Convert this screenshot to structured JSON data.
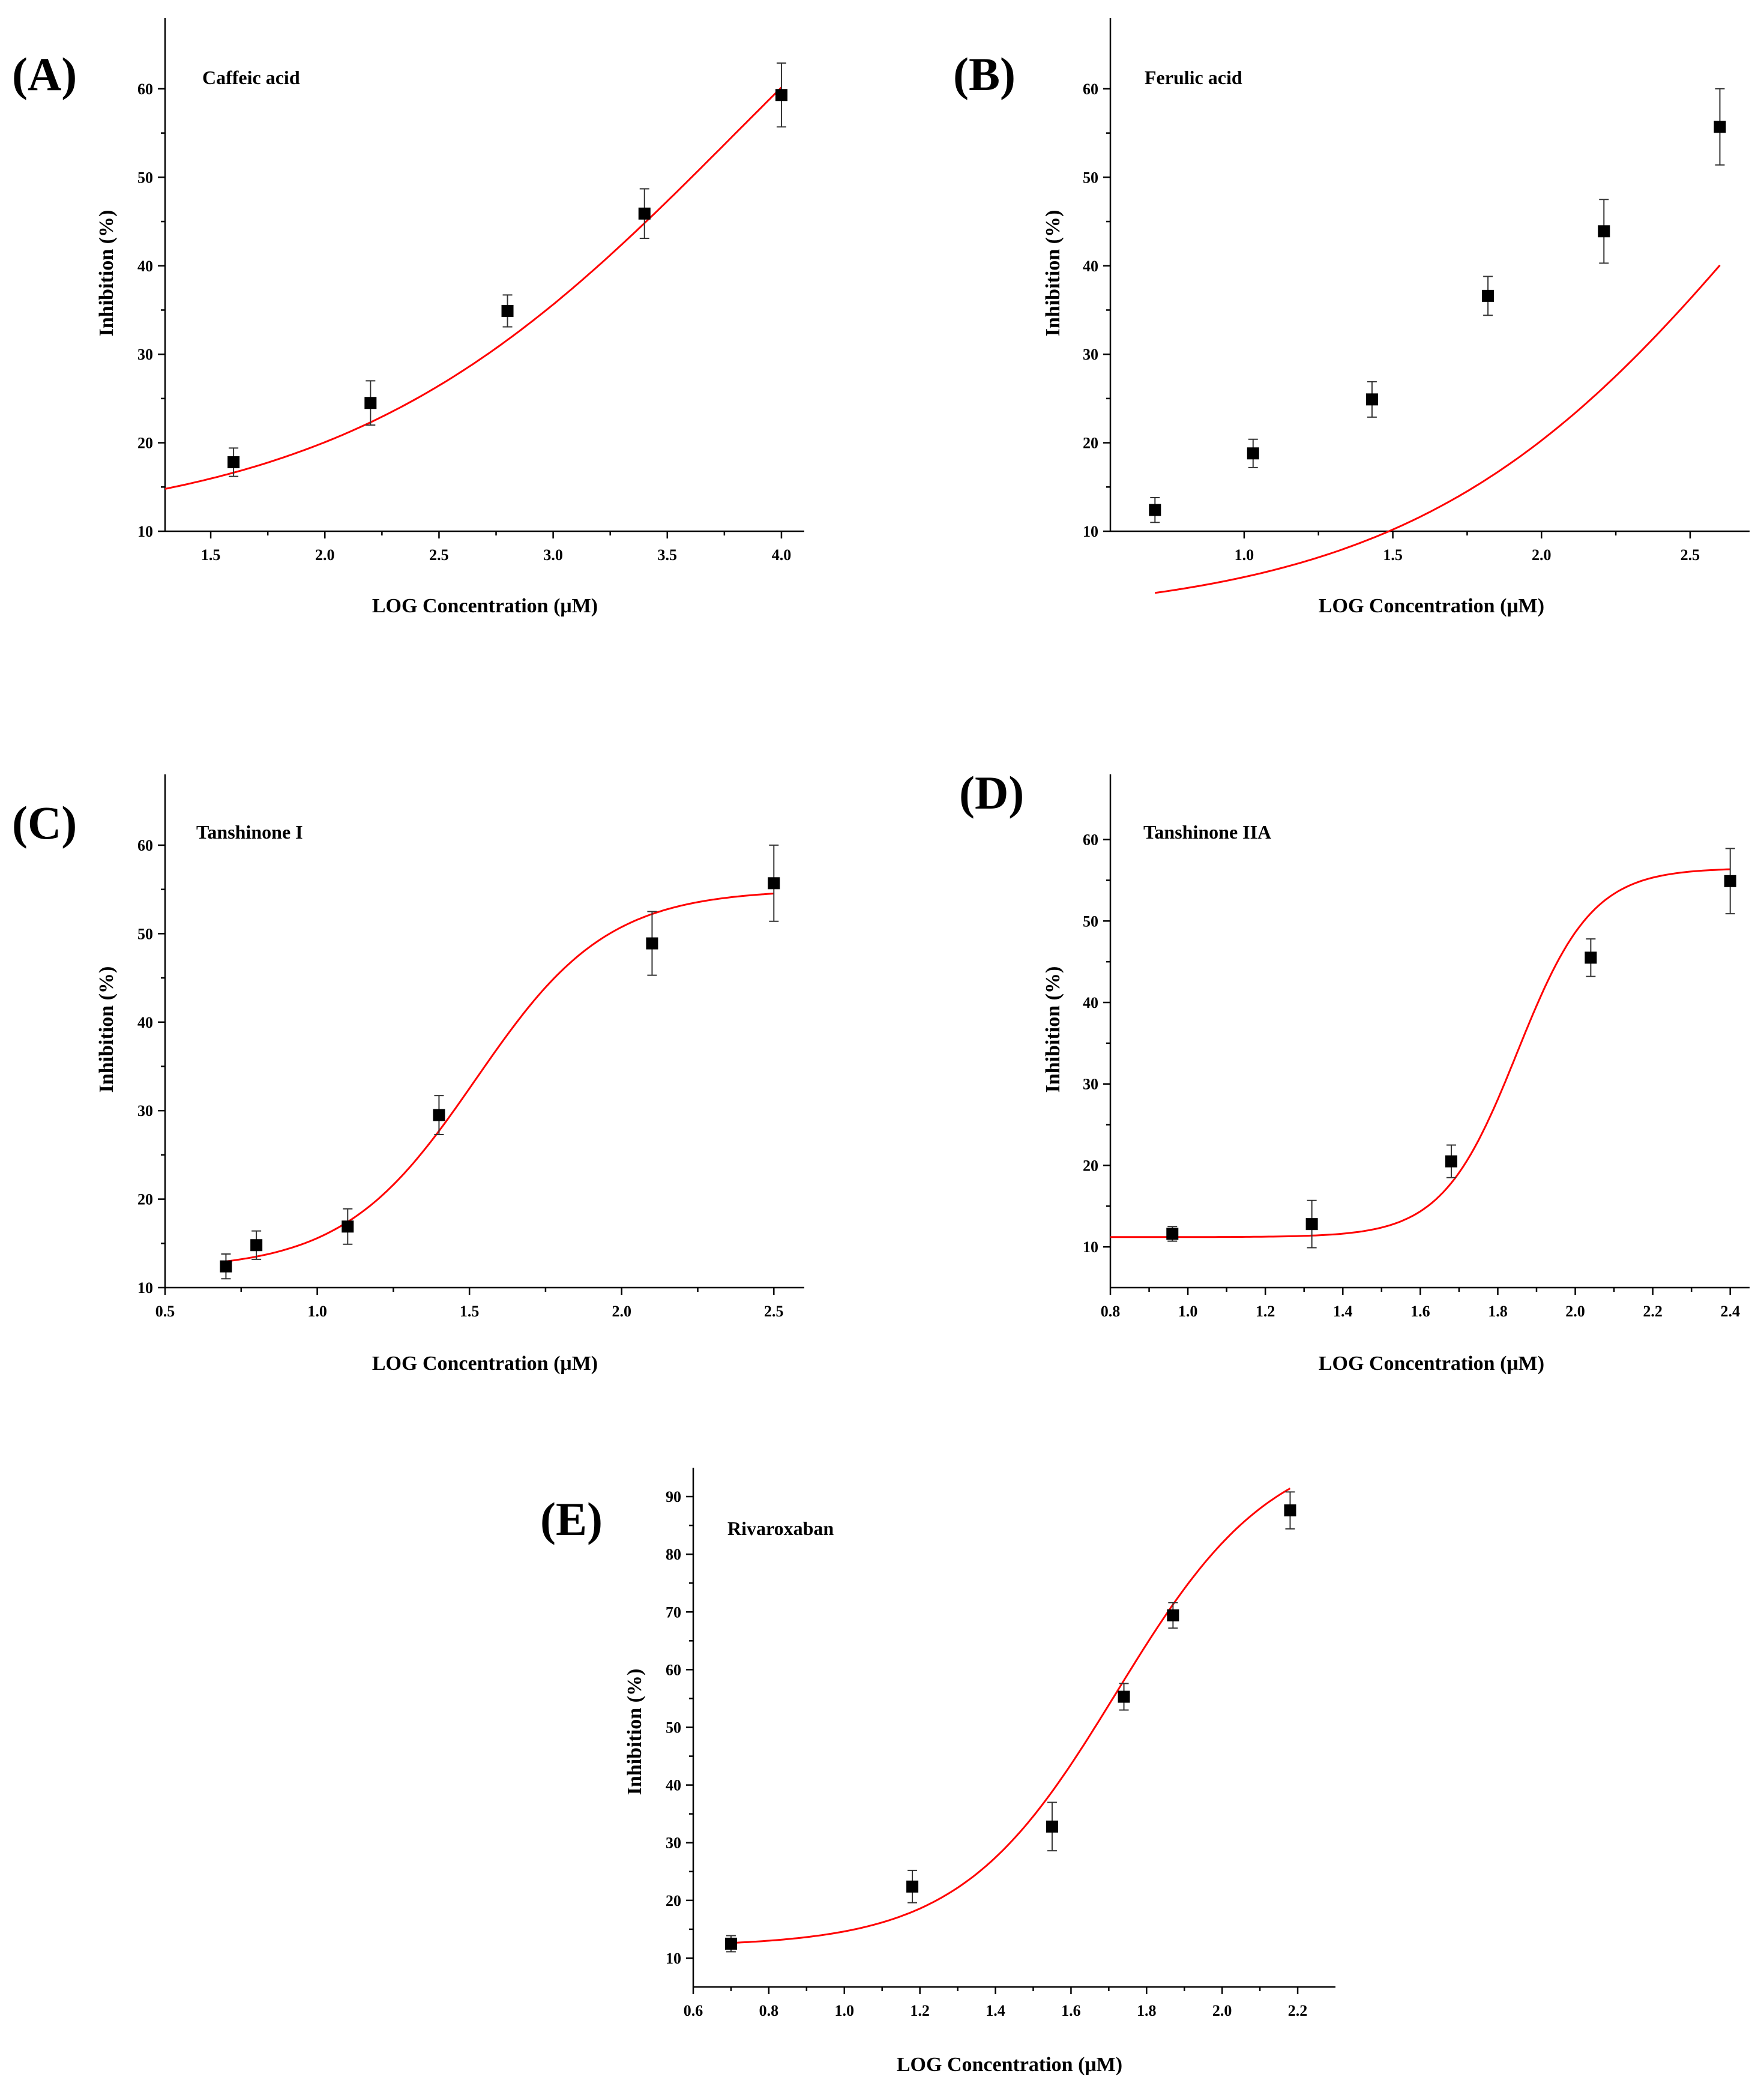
{
  "chart_data": [
    {
      "panel": "(A)",
      "type": "scatter",
      "title": "Caffeic acid",
      "xlabel": "LOG Concentration (μM)",
      "ylabel": "Inhibition (%)",
      "xlim": [
        1.3,
        4.1
      ],
      "ylim": [
        10,
        68
      ],
      "xticks": [
        1.5,
        2.0,
        2.5,
        3.0,
        3.5,
        4.0
      ],
      "xtick_labels": [
        "1.5",
        "2.0",
        "2.5",
        "3.0",
        "3.5",
        "4.0"
      ],
      "yticks": [
        10,
        20,
        30,
        40,
        50,
        60
      ],
      "ytick_labels": [
        "10",
        "20",
        "30",
        "40",
        "50",
        "60"
      ],
      "x": [
        1.6,
        2.2,
        2.8,
        3.4,
        4.0
      ],
      "y": [
        17.8,
        24.5,
        34.9,
        45.9,
        59.3
      ],
      "error": [
        1.6,
        2.5,
        1.8,
        2.8,
        3.6
      ],
      "fit": {
        "bottom": 10,
        "top": 100,
        "logEC50": 3.8,
        "hill": 0.5,
        "x_range": [
          1.3,
          4.0
        ]
      },
      "marker_color": "#000000",
      "fit_color": "#ff0000"
    },
    {
      "panel": "(B)",
      "type": "scatter",
      "title": "Ferulic acid",
      "xlabel": "LOG Concentration (μM)",
      "ylabel": "Inhibition (%)",
      "xlim": [
        0.55,
        2.7
      ],
      "ylim": [
        10,
        68
      ],
      "xticks": [
        1.0,
        1.5,
        2.0,
        2.5
      ],
      "xtick_labels": [
        "1.0",
        "1.5",
        "2.0",
        "2.5"
      ],
      "yticks": [
        10,
        20,
        30,
        40,
        50,
        60
      ],
      "ytick_labels": [
        "10",
        "20",
        "30",
        "40",
        "50",
        "60"
      ],
      "x": [
        0.7,
        1.03,
        1.43,
        1.82,
        2.21,
        2.6
      ],
      "y": [
        12.4,
        18.8,
        24.9,
        36.6,
        43.9,
        55.7
      ],
      "error": [
        1.4,
        1.6,
        2.0,
        2.2,
        3.6,
        4.3
      ],
      "fit": {
        "bottom": 0,
        "top": 100,
        "logEC50": 2.85,
        "hill": 0.7,
        "x_range": [
          0.7,
          2.6
        ]
      },
      "marker_color": "#000000",
      "fit_color": "#ff0000"
    },
    {
      "panel": "(C)",
      "type": "scatter",
      "title": "Tanshinone I",
      "xlabel": "LOG Concentration (μM)",
      "ylabel": "Inhibition (%)",
      "xlim": [
        0.5,
        2.6
      ],
      "ylim": [
        10,
        68
      ],
      "xticks": [
        0.5,
        1.0,
        1.5,
        2.0,
        2.5
      ],
      "xtick_labels": [
        "0.5",
        "1.0",
        "1.5",
        "2.0",
        "2.5"
      ],
      "yticks": [
        10,
        20,
        30,
        40,
        50,
        60
      ],
      "ytick_labels": [
        "10",
        "20",
        "30",
        "40",
        "50",
        "60"
      ],
      "x": [
        0.7,
        0.8,
        1.1,
        1.4,
        2.1,
        2.5
      ],
      "y": [
        12.4,
        14.8,
        16.9,
        29.5,
        48.9,
        55.7
      ],
      "error": [
        1.4,
        1.6,
        2.0,
        2.2,
        3.6,
        4.3
      ],
      "fit": {
        "bottom": 12,
        "top": 55,
        "logEC50": 1.52,
        "hill": 2.0,
        "x_range": [
          0.7,
          2.5
        ]
      },
      "marker_color": "#000000",
      "fit_color": "#ff0000"
    },
    {
      "panel": "(D)",
      "type": "scatter",
      "title": "Tanshinone IIA",
      "xlabel": "LOG Concentration (μM)",
      "ylabel": "Inhibition (%)",
      "xlim": [
        0.8,
        2.45
      ],
      "ylim": [
        5,
        68
      ],
      "xticks": [
        0.8,
        1.0,
        1.2,
        1.4,
        1.6,
        1.8,
        2.0,
        2.2,
        2.4
      ],
      "xtick_labels": [
        "0.8",
        "1.0",
        "1.2",
        "1.4",
        "1.6",
        "1.8",
        "2.0",
        "2.2",
        "2.4"
      ],
      "yticks": [
        10,
        20,
        30,
        40,
        50,
        60
      ],
      "ytick_labels": [
        "10",
        "20",
        "30",
        "40",
        "50",
        "60"
      ],
      "x": [
        0.96,
        1.32,
        1.68,
        2.04,
        2.4
      ],
      "y": [
        11.6,
        12.8,
        20.5,
        45.5,
        54.9
      ],
      "error": [
        0.9,
        2.9,
        2.0,
        2.3,
        4.0
      ],
      "fit": {
        "bottom": 11.2,
        "top": 56.5,
        "logEC50": 1.85,
        "hill": 4.5,
        "x_range": [
          0.8,
          2.4
        ]
      },
      "marker_color": "#000000",
      "fit_color": "#ff0000"
    },
    {
      "panel": "(E)",
      "type": "scatter",
      "title": "Rivaroxaban",
      "xlabel": "LOG Concentration (μM)",
      "ylabel": "Inhibition (%)",
      "xlim": [
        0.6,
        2.3
      ],
      "ylim": [
        5,
        95
      ],
      "xticks": [
        0.6,
        0.8,
        1.0,
        1.2,
        1.4,
        1.6,
        1.8,
        2.0,
        2.2
      ],
      "xtick_labels": [
        "0.6",
        "0.8",
        "1.0",
        "1.2",
        "1.4",
        "1.6",
        "1.8",
        "2.0",
        "2.2"
      ],
      "yticks": [
        10,
        20,
        30,
        40,
        50,
        60,
        70,
        80,
        90
      ],
      "ytick_labels": [
        "10",
        "20",
        "30",
        "40",
        "50",
        "60",
        "70",
        "80",
        "90"
      ],
      "x": [
        0.7,
        1.18,
        1.55,
        1.74,
        1.87,
        2.18
      ],
      "y": [
        12.5,
        22.4,
        32.8,
        55.3,
        69.4,
        87.6
      ],
      "error": [
        1.4,
        2.8,
        4.2,
        2.3,
        2.2,
        3.2
      ],
      "fit": {
        "bottom": 12,
        "top": 100,
        "logEC50": 1.72,
        "hill": 2.1,
        "x_range": [
          0.7,
          2.18
        ]
      },
      "marker_color": "#000000",
      "fit_color": "#ff0000"
    }
  ]
}
